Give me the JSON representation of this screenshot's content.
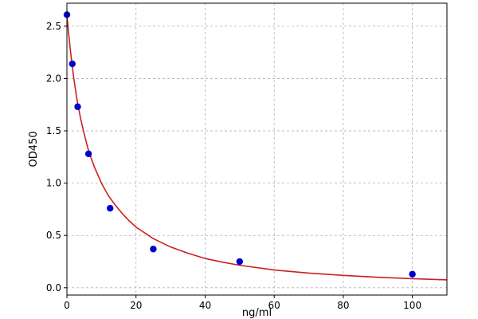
{
  "chart_data": {
    "type": "scatter",
    "title": "",
    "xlabel": "ng/ml",
    "ylabel": "OD450",
    "xlim": [
      0,
      110
    ],
    "ylim": [
      -0.07,
      2.72
    ],
    "x_ticks": [
      0,
      20,
      40,
      60,
      80,
      100
    ],
    "y_ticks": [
      0.0,
      0.5,
      1.0,
      1.5,
      2.0,
      2.5
    ],
    "x_tick_labels": [
      "0",
      "20",
      "40",
      "60",
      "80",
      "100"
    ],
    "y_tick_labels": [
      "0.0",
      "0.5",
      "1.0",
      "1.5",
      "2.0",
      "2.5"
    ],
    "grid": true,
    "series": [
      {
        "kind": "points",
        "color": "#0000cc",
        "x": [
          0,
          1.56,
          3.12,
          6.25,
          12.5,
          25,
          50,
          100
        ],
        "y": [
          2.61,
          2.14,
          1.73,
          1.28,
          0.76,
          0.37,
          0.25,
          0.13
        ]
      },
      {
        "kind": "fitted-curve",
        "color": "#cc1f1f",
        "x": [
          0,
          0.5,
          1,
          1.5,
          2,
          3,
          4,
          5,
          6,
          7,
          8,
          10,
          12,
          14,
          16,
          18,
          20,
          25,
          30,
          35,
          40,
          45,
          50,
          60,
          70,
          80,
          90,
          100,
          110
        ],
        "y": [
          2.6,
          2.43,
          2.27,
          2.13,
          2.0,
          1.78,
          1.61,
          1.47,
          1.34,
          1.24,
          1.15,
          1.0,
          0.88,
          0.79,
          0.71,
          0.64,
          0.58,
          0.47,
          0.39,
          0.33,
          0.28,
          0.245,
          0.215,
          0.17,
          0.14,
          0.118,
          0.1,
          0.087,
          0.075
        ]
      }
    ]
  }
}
